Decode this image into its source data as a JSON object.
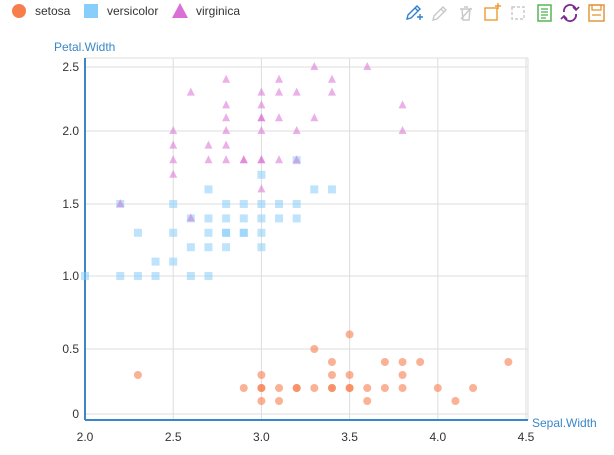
{
  "chart_data": {
    "type": "scatter",
    "title": "",
    "xlabel": "Sepal.Width",
    "ylabel": "Petal.Width",
    "xlim": [
      2.0,
      4.5
    ],
    "ylim": [
      0,
      2.55
    ],
    "x_ticks": [
      "2.0",
      "2.5",
      "3.0",
      "3.5",
      "4.0",
      "4.5"
    ],
    "y_ticks": [
      "0",
      "0.5",
      "1.0",
      "1.5",
      "2.0",
      "2.5"
    ],
    "y_tick_values": [
      0,
      0.5,
      1.0,
      1.5,
      2.0,
      2.5
    ],
    "x_tick_values": [
      2.0,
      2.5,
      3.0,
      3.5,
      4.0,
      4.5
    ],
    "grid": true,
    "legend_position": "top-left",
    "series": [
      {
        "name": "setosa",
        "color": "#f87d4d",
        "marker": "circle",
        "points": [
          [
            2.3,
            0.3
          ],
          [
            2.9,
            0.2
          ],
          [
            3.0,
            0.1
          ],
          [
            3.0,
            0.2
          ],
          [
            3.0,
            0.3
          ],
          [
            3.0,
            0.2
          ],
          [
            3.1,
            0.1
          ],
          [
            3.1,
            0.2
          ],
          [
            3.2,
            0.2
          ],
          [
            3.3,
            0.5
          ],
          [
            3.3,
            0.2
          ],
          [
            3.4,
            0.2
          ],
          [
            3.4,
            0.4
          ],
          [
            3.4,
            0.3
          ],
          [
            3.5,
            0.2
          ],
          [
            3.5,
            0.3
          ],
          [
            3.5,
            0.6
          ],
          [
            3.6,
            0.1
          ],
          [
            3.6,
            0.2
          ],
          [
            3.7,
            0.2
          ],
          [
            3.7,
            0.4
          ],
          [
            3.8,
            0.3
          ],
          [
            3.8,
            0.2
          ],
          [
            3.8,
            0.4
          ],
          [
            3.9,
            0.4
          ],
          [
            4.0,
            0.2
          ],
          [
            4.1,
            0.1
          ],
          [
            4.2,
            0.2
          ],
          [
            4.4,
            0.4
          ],
          [
            3.2,
            0.2
          ],
          [
            3.4,
            0.2
          ],
          [
            3.5,
            0.2
          ]
        ]
      },
      {
        "name": "versicolor",
        "color": "#87cefa",
        "marker": "square",
        "points": [
          [
            2.0,
            1.0
          ],
          [
            2.2,
            1.0
          ],
          [
            2.2,
            1.5
          ],
          [
            2.3,
            1.0
          ],
          [
            2.3,
            1.3
          ],
          [
            2.4,
            1.0
          ],
          [
            2.4,
            1.1
          ],
          [
            2.5,
            1.1
          ],
          [
            2.5,
            1.5
          ],
          [
            2.5,
            1.3
          ],
          [
            2.6,
            1.2
          ],
          [
            2.6,
            1.4
          ],
          [
            2.6,
            1.0
          ],
          [
            2.7,
            1.0
          ],
          [
            2.7,
            1.2
          ],
          [
            2.7,
            1.3
          ],
          [
            2.7,
            1.4
          ],
          [
            2.7,
            1.6
          ],
          [
            2.8,
            1.3
          ],
          [
            2.8,
            1.5
          ],
          [
            2.8,
            1.2
          ],
          [
            2.8,
            1.4
          ],
          [
            2.9,
            1.3
          ],
          [
            2.9,
            1.4
          ],
          [
            2.9,
            1.5
          ],
          [
            3.0,
            1.2
          ],
          [
            3.0,
            1.4
          ],
          [
            3.0,
            1.5
          ],
          [
            3.0,
            1.7
          ],
          [
            3.1,
            1.5
          ],
          [
            3.1,
            1.4
          ],
          [
            3.2,
            1.5
          ],
          [
            3.2,
            1.4
          ],
          [
            3.2,
            1.8
          ],
          [
            3.3,
            1.6
          ],
          [
            3.4,
            1.6
          ],
          [
            3.0,
            1.3
          ],
          [
            2.9,
            1.3
          ],
          [
            2.8,
            1.3
          ]
        ]
      },
      {
        "name": "virginica",
        "color": "#da70d6",
        "marker": "triangle",
        "points": [
          [
            2.2,
            1.5
          ],
          [
            2.5,
            1.7
          ],
          [
            2.5,
            1.8
          ],
          [
            2.5,
            1.9
          ],
          [
            2.5,
            2.0
          ],
          [
            2.6,
            1.4
          ],
          [
            2.6,
            2.3
          ],
          [
            2.7,
            1.8
          ],
          [
            2.7,
            1.9
          ],
          [
            2.8,
            1.8
          ],
          [
            2.8,
            1.9
          ],
          [
            2.8,
            2.0
          ],
          [
            2.8,
            2.1
          ],
          [
            2.8,
            2.2
          ],
          [
            2.8,
            2.4
          ],
          [
            2.9,
            1.8
          ],
          [
            3.0,
            1.6
          ],
          [
            3.0,
            1.8
          ],
          [
            3.0,
            2.0
          ],
          [
            3.0,
            2.1
          ],
          [
            3.0,
            2.2
          ],
          [
            3.0,
            2.3
          ],
          [
            3.0,
            2.1
          ],
          [
            3.1,
            1.8
          ],
          [
            3.1,
            2.1
          ],
          [
            3.1,
            2.3
          ],
          [
            3.1,
            2.4
          ],
          [
            3.2,
            1.8
          ],
          [
            3.2,
            2.0
          ],
          [
            3.2,
            2.3
          ],
          [
            3.3,
            2.1
          ],
          [
            3.3,
            2.5
          ],
          [
            3.4,
            2.3
          ],
          [
            3.4,
            2.4
          ],
          [
            3.6,
            2.5
          ],
          [
            3.8,
            2.0
          ],
          [
            3.8,
            2.2
          ],
          [
            3.0,
            1.8
          ],
          [
            2.9,
            1.8
          ]
        ]
      }
    ]
  },
  "legend": {
    "items": [
      {
        "label": "setosa",
        "color": "#f87d4d",
        "marker": "circle"
      },
      {
        "label": "versicolor",
        "color": "#87cefa",
        "marker": "square"
      },
      {
        "label": "virginica",
        "color": "#da70d6",
        "marker": "triangle"
      }
    ]
  },
  "toolbox": {
    "icons": [
      {
        "name": "brush-tool-icon",
        "color": "#2f7fd2"
      },
      {
        "name": "brush-keep-icon",
        "color": "#c8c8c8"
      },
      {
        "name": "brush-clear-icon",
        "color": "#c8c8c8"
      },
      {
        "name": "rect-select-icon",
        "color": "#ee9b33"
      },
      {
        "name": "zoom-reset-icon",
        "color": "#c8c8c8"
      },
      {
        "name": "data-view-icon",
        "color": "#4ab04a"
      },
      {
        "name": "restore-icon",
        "color": "#7a2a8e"
      },
      {
        "name": "save-image-icon",
        "color": "#e0902a"
      }
    ]
  }
}
